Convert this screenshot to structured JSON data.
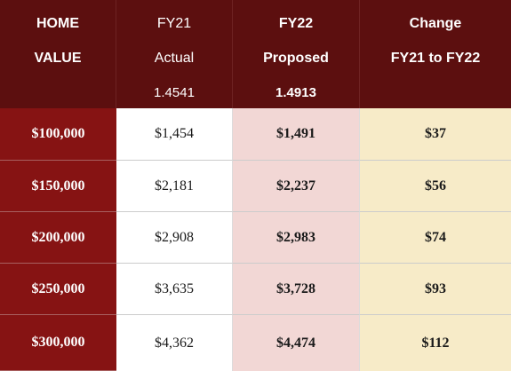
{
  "header": {
    "home_value": {
      "line1": "HOME",
      "line2": "VALUE"
    },
    "fy21": {
      "line1": "FY21",
      "line2": "Actual",
      "rate": "1.4541"
    },
    "fy22": {
      "line1": "FY22",
      "line2": "Proposed",
      "rate": "1.4913"
    },
    "change": {
      "line1": "Change",
      "line2": "FY21 to FY22"
    }
  },
  "rows": [
    {
      "home_value": "$100,000",
      "fy21_actual": "$1,454",
      "fy22_proposed": "$1,491",
      "change": "$37"
    },
    {
      "home_value": "$150,000",
      "fy21_actual": "$2,181",
      "fy22_proposed": "$2,237",
      "change": "$56"
    },
    {
      "home_value": "$200,000",
      "fy21_actual": "$2,908",
      "fy22_proposed": "$2,983",
      "change": "$74"
    },
    {
      "home_value": "$250,000",
      "fy21_actual": "$3,635",
      "fy22_proposed": "$3,728",
      "change": "$93"
    },
    {
      "home_value": "$300,000",
      "fy21_actual": "$4,362",
      "fy22_proposed": "$4,474",
      "change": "$112"
    }
  ],
  "colors": {
    "header_bg": "#5c0f0f",
    "row_header_bg": "#861313",
    "proposed_bg": "#f2d7d5",
    "change_bg": "#f7ebc8"
  }
}
